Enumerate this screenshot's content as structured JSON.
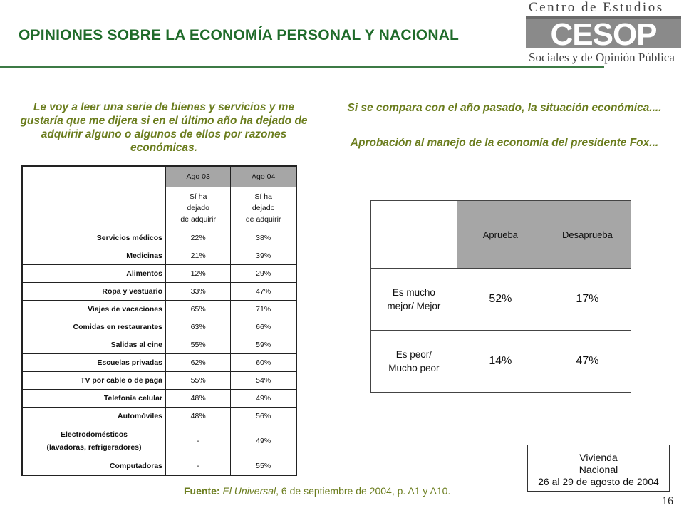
{
  "title": "OPINIONES SOBRE LA ECONOMÍA PERSONAL Y NACIONAL",
  "logo": {
    "top": "Centro de Estudios",
    "mark": "CESOP",
    "bottom": "Sociales y de Opinión Pública"
  },
  "colors": {
    "title": "#1f6b2a",
    "question": "#6b7d1e",
    "header_fill": "#a6a6a6"
  },
  "left": {
    "question": "Le voy a leer una serie de bienes y servicios y me gustaría que me dijera si en el último año ha dejado de adquirir alguno o algunos de ellos por razones económicas.",
    "headers": [
      "Ago 03",
      "Ago 04"
    ],
    "sub1": [
      "Sí ha",
      "dejado",
      "de adquirir"
    ],
    "sub2": [
      "Sí ha",
      "dejado",
      "de adquirir"
    ],
    "rows": [
      {
        "label": "Servicios médicos",
        "a": "22%",
        "b": "38%"
      },
      {
        "label": "Medicinas",
        "a": "21%",
        "b": "39%"
      },
      {
        "label": "Alimentos",
        "a": "12%",
        "b": "29%"
      },
      {
        "label": "Ropa y vestuario",
        "a": "33%",
        "b": "47%"
      },
      {
        "label": "Viajes de vacaciones",
        "a": "65%",
        "b": "71%"
      },
      {
        "label": "Comidas en restaurantes",
        "a": "63%",
        "b": "66%"
      },
      {
        "label": "Salidas al cine",
        "a": "55%",
        "b": "59%"
      },
      {
        "label": "Escuelas privadas",
        "a": "62%",
        "b": "60%"
      },
      {
        "label": "TV por cable o de paga",
        "a": "55%",
        "b": "54%"
      },
      {
        "label": "Telefonía celular",
        "a": "48%",
        "b": "49%"
      },
      {
        "label": "Automóviles",
        "a": "48%",
        "b": "56%"
      }
    ],
    "electro": {
      "label1": "Electrodomésticos",
      "label2": "(lavadoras, refrigeradores)",
      "a": "-",
      "b": "49%"
    },
    "computadoras": {
      "label": "Computadoras",
      "a": "-",
      "b": "55%"
    }
  },
  "right": {
    "question1": "Si se compara con el año pasado, la situación económica....",
    "question2": "Aprobación al manejo de la economía del presidente Fox...",
    "headers": [
      "Aprueba",
      "Desaprueba"
    ],
    "rows": [
      {
        "label1": "Es mucho",
        "label2": "mejor/ Mejor",
        "a": "52%",
        "b": "17%"
      },
      {
        "label1": "Es peor/",
        "label2": "Mucho peor",
        "a": "14%",
        "b": "47%"
      }
    ]
  },
  "source": {
    "label": "Fuente:",
    "paper": "El Universal",
    "rest": ", 6 de septiembre de 2004, p. A1 y A10."
  },
  "vivienda": {
    "line1": "Vivienda",
    "line2": "Nacional",
    "line3": "26 al 29 de agosto de 2004"
  },
  "page_number": "16"
}
